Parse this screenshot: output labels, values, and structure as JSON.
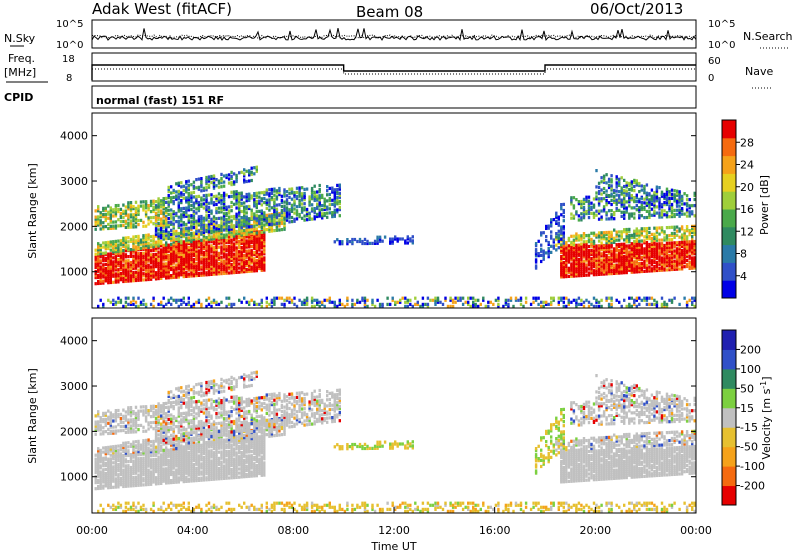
{
  "header": {
    "radar": "Adak West (fitACF)",
    "beam": "Beam 08",
    "date": "06/Oct/2013"
  },
  "noise_panel": {
    "left_label": "N.Sky",
    "right_label": "N.Search",
    "left_ticks": [
      "10^5",
      "10^0"
    ],
    "right_ticks": [
      "10^5",
      "10^0"
    ]
  },
  "freq_panel": {
    "left_label_1": "Freq.",
    "left_label_2": "[MHz]",
    "left_ticks": [
      "18",
      "8"
    ],
    "right_label": "Nave",
    "right_ticks": [
      "60",
      "0"
    ],
    "cpid_label": "CPID"
  },
  "mode_text": "normal (fast) 151 RF",
  "colors": {
    "power": [
      "#0000e6",
      "#3050c8",
      "#2a7aa8",
      "#2f8a60",
      "#4aa94a",
      "#9fce3a",
      "#e6d020",
      "#f5a21a",
      "#f56a0f",
      "#e60000"
    ],
    "velocity": [
      "#e60000",
      "#f56a0f",
      "#f5a21a",
      "#e6c030",
      "#c0c0c0",
      "#7cd040",
      "#2f8a60",
      "#3050c8",
      "#2020b0"
    ]
  },
  "chart_data": [
    {
      "type": "heatmap",
      "panel": "power",
      "ylabel": "Slant Range [km]",
      "ylim": [
        200,
        4500
      ],
      "yticks": [
        "1000",
        "2000",
        "3000",
        "4000"
      ],
      "x_range_hours": [
        0,
        24
      ],
      "colorbar": {
        "label": "Power [dB]",
        "ticks": [
          "4",
          "8",
          "12",
          "16",
          "20",
          "24",
          "28"
        ],
        "range": [
          0,
          32
        ]
      }
    },
    {
      "type": "heatmap",
      "panel": "velocity",
      "ylabel": "Slant Range [km]",
      "ylim": [
        200,
        4500
      ],
      "yticks": [
        "1000",
        "2000",
        "3000",
        "4000"
      ],
      "xlabel": "Time UT",
      "xticks": [
        "00:00",
        "04:00",
        "08:00",
        "12:00",
        "16:00",
        "20:00",
        "00:00"
      ],
      "colorbar": {
        "label": "Velocity [m s",
        "label_sup": "-1",
        "label_end": "]",
        "ticks": [
          "200",
          "100",
          "50",
          "15",
          "-15",
          "-50",
          "-100",
          "-200"
        ]
      }
    }
  ]
}
